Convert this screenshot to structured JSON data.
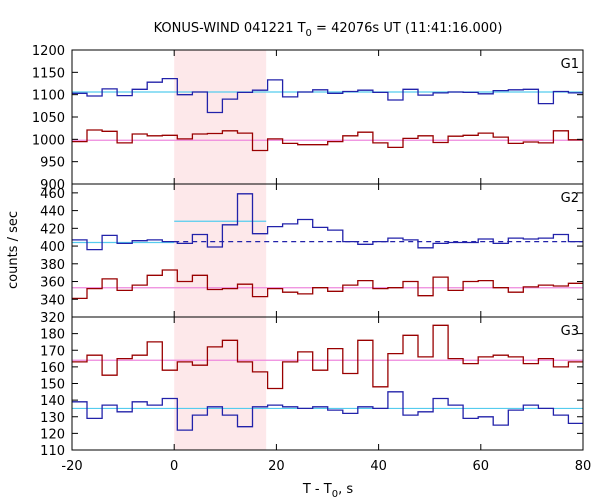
{
  "chart_data": {
    "type": "line",
    "title_parts": {
      "pre": "KONUS-WIND 041221 T",
      "sub": "0",
      "post": " = 42076s UT (11:41:16.000)"
    },
    "ylabel": "counts / sec",
    "xlabel_parts": {
      "pre": "T - T",
      "sub": "0",
      "post": ", s"
    },
    "x_range": [
      -20,
      80
    ],
    "x_ticks": [
      -20,
      0,
      20,
      40,
      60,
      80
    ],
    "highlight_interval": [
      0,
      18
    ],
    "highlight_color": "#fde8ea",
    "colors": {
      "blue": "#2222aa",
      "red": "#990000",
      "cyan": "#55ccee",
      "pink": "#ee88dd"
    },
    "panels": [
      {
        "label": "G1",
        "ylim": [
          900,
          1200
        ],
        "y_ticks": [
          900,
          950,
          1000,
          1050,
          1100,
          1150,
          1200
        ],
        "series": [
          {
            "color": "blue",
            "step": 2.944,
            "start": -20,
            "values": [
              1103,
              1097,
              1113,
              1098,
              1112,
              1128,
              1136,
              1100,
              1106,
              1060,
              1090,
              1105,
              1110,
              1133,
              1095,
              1106,
              1111,
              1103,
              1107,
              1110,
              1105,
              1088,
              1112,
              1099,
              1104,
              1106,
              1105,
              1102,
              1109,
              1111,
              1112,
              1080,
              1107,
              1104,
              1110,
              1101,
              1115,
              1093,
              1093,
              1105,
              1115,
              1104,
              1084,
              1117,
              1095,
              1102,
              1121,
              1101,
              1114,
              1093,
              1107,
              1093,
              1117,
              1108,
              1116,
              1107,
              1093,
              1101,
              1095,
              1106,
              1104,
              1099,
              1086,
              1111,
              1093,
              1128
            ]
          },
          {
            "color": "red",
            "step": 2.944,
            "start": -20,
            "values": [
              995,
              1021,
              1018,
              992,
              1012,
              1008,
              1009,
              1001,
              1012,
              1013,
              1019,
              1014,
              975,
              1001,
              991,
              988,
              988,
              995,
              1008,
              1016,
              992,
              982,
              1002,
              1008,
              993,
              1007,
              1009,
              1014,
              1005,
              991,
              994,
              992,
              1019,
              999,
              1000,
              1007,
              990,
              1013,
              1021,
              1023,
              1018,
              976,
              1000,
              996,
              1019,
              1012,
              1005,
              1018,
              1006,
              1009,
              1017,
              1003,
              1008,
              1012,
              1000,
              997,
              1017,
              1021,
              1003,
              990,
              1014,
              1030,
              1008,
              1021,
              1018,
              1012
            ]
          }
        ],
        "refs": [
          {
            "color": "cyan",
            "value": 1106
          },
          {
            "color": "pink",
            "value": 998
          }
        ]
      },
      {
        "label": "G2",
        "ylim": [
          320,
          470
        ],
        "y_ticks": [
          320,
          340,
          360,
          380,
          400,
          420,
          440,
          460
        ],
        "series": [
          {
            "color": "blue",
            "step": 2.944,
            "start": -20,
            "values": [
              407,
              396,
              412,
              403,
              406,
              407,
              405,
              403,
              413,
              399,
              424,
              459,
              414,
              422,
              425,
              430,
              421,
              418,
              405,
              402,
              405,
              409,
              407,
              398,
              403,
              404,
              404,
              408,
              403,
              409,
              408,
              409,
              413,
              405,
              404,
              389,
              405,
              405,
              407,
              396,
              406,
              409,
              405,
              404,
              406,
              406,
              409,
              405,
              405,
              406,
              402,
              405,
              409,
              410,
              401,
              406,
              406,
              400,
              403,
              408,
              401,
              409,
              405,
              407,
              403,
              408
            ]
          },
          {
            "color": "red",
            "step": 2.944,
            "start": -20,
            "values": [
              341,
              352,
              363,
              350,
              356,
              367,
              373,
              360,
              367,
              351,
              352,
              357,
              343,
              352,
              348,
              346,
              353,
              349,
              356,
              361,
              352,
              353,
              360,
              344,
              365,
              350,
              360,
              361,
              353,
              348,
              354,
              356,
              355,
              358,
              350,
              362,
              354,
              351,
              363,
              343,
              342,
              352,
              348,
              361,
              352,
              347,
              354,
              353,
              351,
              363,
              360,
              356,
              356,
              351,
              359,
              363,
              352,
              361,
              369,
              350,
              360,
              352,
              362,
              351,
              364,
              357
            ]
          }
        ],
        "refs": [
          {
            "color": "cyan",
            "value": 404,
            "to_x": 0
          },
          {
            "color": "cyan",
            "value": 428,
            "from_x": 0,
            "to_x": 18
          },
          {
            "color": "blue",
            "value": 405,
            "from_x": 0,
            "dashed": true
          },
          {
            "color": "pink",
            "value": 353
          }
        ]
      },
      {
        "label": "G3",
        "ylim": [
          110,
          190
        ],
        "y_ticks": [
          110,
          120,
          130,
          140,
          150,
          160,
          170,
          180
        ],
        "series": [
          {
            "color": "blue",
            "step": 2.944,
            "start": -20,
            "values": [
              139,
              129,
              137,
              133,
              139,
              137,
              141,
              122,
              131,
              136,
              131,
              124,
              136,
              137,
              136,
              135,
              136,
              134,
              132,
              136,
              135,
              145,
              131,
              133,
              141,
              137,
              129,
              130,
              125,
              134,
              137,
              135,
              131,
              126,
              135,
              131,
              134,
              134,
              137,
              127,
              130,
              127,
              135,
              135,
              130,
              128,
              136,
              131,
              154,
              145,
              139,
              128,
              132,
              134,
              134,
              130,
              132,
              133,
              136,
              133,
              134,
              135,
              132,
              135,
              140,
              126
            ]
          },
          {
            "color": "red",
            "step": 2.944,
            "start": -20,
            "values": [
              163,
              167,
              155,
              165,
              167,
              175,
              158,
              163,
              161,
              172,
              176,
              163,
              157,
              147,
              163,
              169,
              158,
              171,
              156,
              176,
              148,
              168,
              179,
              166,
              185,
              165,
              162,
              166,
              167,
              166,
              162,
              165,
              160,
              163,
              162,
              157,
              159,
              157,
              169,
              166,
              164,
              165,
              156,
              155,
              167,
              153,
              162,
              156,
              168,
              168,
              168,
              166,
              163,
              163,
              168,
              161,
              166,
              150,
              158,
              164,
              161,
              165,
              160,
              163,
              164,
              159
            ]
          }
        ],
        "refs": [
          {
            "color": "cyan",
            "value": 135
          },
          {
            "color": "pink",
            "value": 164
          }
        ]
      }
    ]
  }
}
